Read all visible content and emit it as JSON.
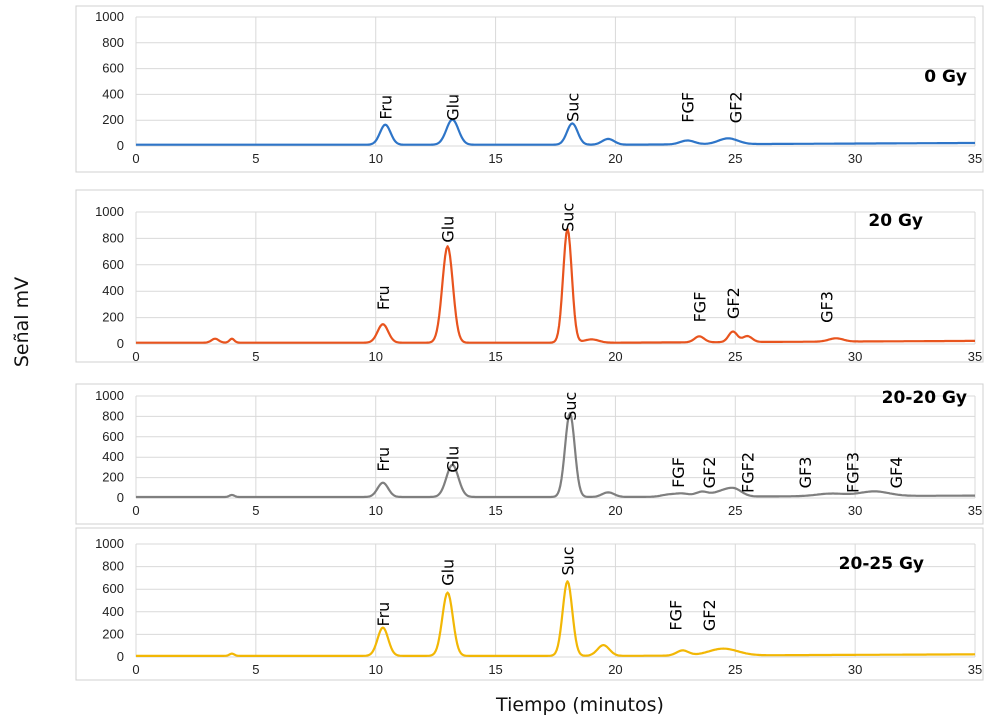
{
  "figure": {
    "ylabel": "Señal mV",
    "xlabel": "Tiempo (minutos)"
  },
  "chart_data": [
    {
      "type": "line",
      "title": "0 Gy",
      "color": "#2E75C8",
      "xlim": [
        0,
        35
      ],
      "ylim": [
        0,
        1000
      ],
      "x_ticks": [
        0,
        5,
        10,
        15,
        20,
        25,
        30,
        35
      ],
      "y_ticks": [
        0,
        200,
        400,
        600,
        800,
        1000
      ],
      "grid": true,
      "baseline": 10,
      "peaks": [
        {
          "x": 10.4,
          "y": 155,
          "w": 0.22
        },
        {
          "x": 13.2,
          "y": 195,
          "w": 0.25
        },
        {
          "x": 18.2,
          "y": 165,
          "w": 0.22
        },
        {
          "x": 19.7,
          "y": 45,
          "w": 0.25
        },
        {
          "x": 23.0,
          "y": 30,
          "w": 0.3
        },
        {
          "x": 24.7,
          "y": 45,
          "w": 0.4
        }
      ],
      "labels": [
        {
          "text": "Fru",
          "x": 10.4,
          "y": 300
        },
        {
          "text": "Glu",
          "x": 13.2,
          "y": 300
        },
        {
          "text": "Suc",
          "x": 18.2,
          "y": 300
        },
        {
          "text": "FGF",
          "x": 23.0,
          "y": 300
        },
        {
          "text": "GF2",
          "x": 25.0,
          "y": 300
        }
      ]
    },
    {
      "type": "line",
      "title": "20 Gy",
      "color": "#E8541E",
      "xlim": [
        0,
        35
      ],
      "ylim": [
        0,
        1000
      ],
      "x_ticks": [
        0,
        5,
        10,
        15,
        20,
        25,
        30,
        35
      ],
      "y_ticks": [
        0,
        200,
        400,
        600,
        800,
        1000
      ],
      "grid": true,
      "baseline": 10,
      "peaks": [
        {
          "x": 3.3,
          "y": 30,
          "w": 0.15
        },
        {
          "x": 4.0,
          "y": 30,
          "w": 0.1
        },
        {
          "x": 10.3,
          "y": 140,
          "w": 0.22
        },
        {
          "x": 13.0,
          "y": 730,
          "w": 0.22
        },
        {
          "x": 18.0,
          "y": 860,
          "w": 0.18
        },
        {
          "x": 19.0,
          "y": 25,
          "w": 0.3
        },
        {
          "x": 23.5,
          "y": 45,
          "w": 0.2
        },
        {
          "x": 24.9,
          "y": 80,
          "w": 0.18
        },
        {
          "x": 25.5,
          "y": 45,
          "w": 0.2
        },
        {
          "x": 29.2,
          "y": 25,
          "w": 0.3
        }
      ],
      "labels": [
        {
          "text": "Fru",
          "x": 10.3,
          "y": 350
        },
        {
          "text": "Glu",
          "x": 13.0,
          "y": 870
        },
        {
          "text": "Suc",
          "x": 18.0,
          "y": 960
        },
        {
          "text": "FGF",
          "x": 23.5,
          "y": 280
        },
        {
          "text": "GF2",
          "x": 24.9,
          "y": 310
        },
        {
          "text": "GF3",
          "x": 28.8,
          "y": 280
        }
      ]
    },
    {
      "type": "line",
      "title": "20-20 Gy",
      "color": "#7F7F7F",
      "xlim": [
        0,
        35
      ],
      "ylim": [
        0,
        1000
      ],
      "x_ticks": [
        0,
        5,
        10,
        15,
        20,
        25,
        30,
        35
      ],
      "y_ticks": [
        0,
        200,
        400,
        600,
        800,
        1000
      ],
      "grid": true,
      "baseline": 10,
      "peaks": [
        {
          "x": 4.0,
          "y": 20,
          "w": 0.1
        },
        {
          "x": 10.3,
          "y": 140,
          "w": 0.22
        },
        {
          "x": 13.2,
          "y": 315,
          "w": 0.25
        },
        {
          "x": 18.1,
          "y": 820,
          "w": 0.2
        },
        {
          "x": 19.7,
          "y": 45,
          "w": 0.25
        },
        {
          "x": 22.2,
          "y": 20,
          "w": 0.3
        },
        {
          "x": 22.8,
          "y": 30,
          "w": 0.3
        },
        {
          "x": 23.6,
          "y": 45,
          "w": 0.25
        },
        {
          "x": 24.5,
          "y": 55,
          "w": 0.4
        },
        {
          "x": 25.0,
          "y": 55,
          "w": 0.3
        },
        {
          "x": 29.0,
          "y": 25,
          "w": 0.6
        },
        {
          "x": 30.8,
          "y": 45,
          "w": 0.6
        }
      ],
      "labels": [
        {
          "text": "Fru",
          "x": 10.3,
          "y": 380
        },
        {
          "text": "Glu",
          "x": 13.2,
          "y": 380
        },
        {
          "text": "Suc",
          "x": 18.1,
          "y": 900
        },
        {
          "text": "FGF",
          "x": 22.6,
          "y": 250
        },
        {
          "text": "GF2",
          "x": 23.9,
          "y": 250
        },
        {
          "text": "FGF2",
          "x": 25.5,
          "y": 250
        },
        {
          "text": "GF3",
          "x": 27.9,
          "y": 250
        },
        {
          "text": "FGF3",
          "x": 29.9,
          "y": 250
        },
        {
          "text": "GF4",
          "x": 31.7,
          "y": 250
        }
      ]
    },
    {
      "type": "line",
      "title": "20-25 Gy",
      "color": "#F2B705",
      "xlim": [
        0,
        35
      ],
      "ylim": [
        0,
        1000
      ],
      "x_ticks": [
        0,
        5,
        10,
        15,
        20,
        25,
        30,
        35
      ],
      "y_ticks": [
        0,
        200,
        400,
        600,
        800,
        1000
      ],
      "grid": true,
      "baseline": 10,
      "peaks": [
        {
          "x": 4.0,
          "y": 20,
          "w": 0.1
        },
        {
          "x": 10.3,
          "y": 250,
          "w": 0.22
        },
        {
          "x": 13.0,
          "y": 560,
          "w": 0.22
        },
        {
          "x": 18.0,
          "y": 660,
          "w": 0.2
        },
        {
          "x": 19.5,
          "y": 95,
          "w": 0.25
        },
        {
          "x": 22.8,
          "y": 45,
          "w": 0.25
        },
        {
          "x": 24.5,
          "y": 60,
          "w": 0.6
        }
      ],
      "labels": [
        {
          "text": "Fru",
          "x": 10.3,
          "y": 380
        },
        {
          "text": "Glu",
          "x": 13.0,
          "y": 750
        },
        {
          "text": "Suc",
          "x": 18.0,
          "y": 850
        },
        {
          "text": "FGF",
          "x": 22.5,
          "y": 370
        },
        {
          "text": "GF2",
          "x": 23.9,
          "y": 370
        }
      ]
    }
  ]
}
